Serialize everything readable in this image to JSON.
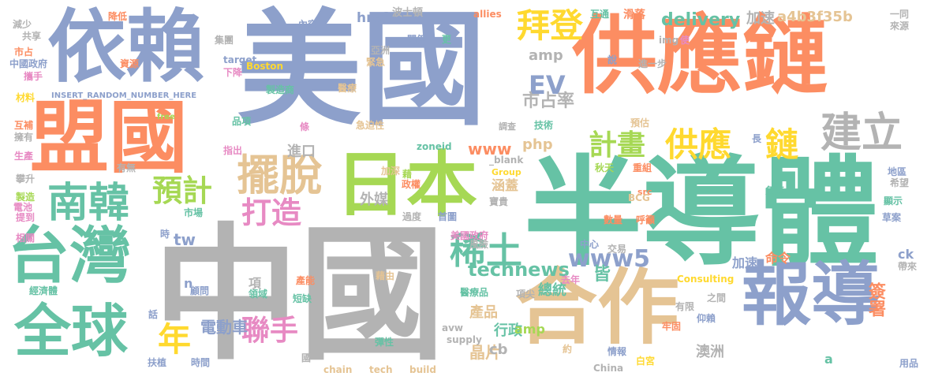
{
  "colors": {
    "blue": "#8da0cb",
    "orange": "#fc8d62",
    "green": "#66c2a5",
    "gray": "#b3b3b3",
    "lime": "#a6d854",
    "tan": "#e5c494",
    "yellow": "#ffd92f",
    "pink": "#e78ac3"
  },
  "words": [
    {
      "text": "美國",
      "color": "#8da0cb"
    },
    {
      "text": "供應鏈",
      "color": "#fc8d62"
    },
    {
      "text": "依賴",
      "color": "#8da0cb"
    },
    {
      "text": "盟國",
      "color": "#fc8d62"
    },
    {
      "text": "半導體",
      "color": "#66c2a5"
    },
    {
      "text": "中國",
      "color": "#b3b3b3"
    },
    {
      "text": "日本",
      "color": "#a6d854"
    },
    {
      "text": "合作",
      "color": "#e5c494"
    },
    {
      "text": "報導",
      "color": "#8da0cb"
    },
    {
      "text": "台灣",
      "color": "#66c2a5"
    },
    {
      "text": "全球",
      "color": "#66c2a5"
    },
    {
      "text": "南韓",
      "color": "#66c2a5"
    },
    {
      "text": "擺脫",
      "color": "#e5c494"
    },
    {
      "text": "建立",
      "color": "#b3b3b3"
    },
    {
      "text": "拜登",
      "color": "#ffd92f"
    },
    {
      "text": "供應",
      "color": "#ffd92f"
    },
    {
      "text": "鏈",
      "color": "#ffd92f"
    },
    {
      "text": "稀土",
      "color": "#66c2a5"
    },
    {
      "text": "打造",
      "color": "#e78ac3"
    },
    {
      "text": "聯手",
      "color": "#e78ac3"
    },
    {
      "text": "預計",
      "color": "#a6d854"
    },
    {
      "text": "年",
      "color": "#ffd92f"
    },
    {
      "text": "計畫",
      "color": "#a6d854"
    },
    {
      "text": "EV",
      "color": "#8da0cb"
    },
    {
      "text": "www5",
      "color": "#8da0cb"
    },
    {
      "text": "technews",
      "color": "#66c2a5"
    },
    {
      "text": "delivery",
      "color": "#66c2a5"
    },
    {
      "text": "a4b3f35b",
      "color": "#e5c494"
    },
    {
      "text": "加速",
      "color": "#b3b3b3"
    },
    {
      "text": "amp",
      "color": "#b3b3b3"
    },
    {
      "text": "www",
      "color": "#fc8d62"
    },
    {
      "text": "php",
      "color": "#e5c494"
    },
    {
      "text": "市占率",
      "color": "#b3b3b3"
    },
    {
      "text": "電動車",
      "color": "#8da0cb"
    },
    {
      "text": "href",
      "color": "#8da0cb"
    },
    {
      "text": "進口",
      "color": "#b3b3b3"
    },
    {
      "text": "外媒",
      "color": "#b3b3b3"
    },
    {
      "text": "tw",
      "color": "#8da0cb"
    },
    {
      "text": "皆",
      "color": "#66c2a5"
    },
    {
      "text": "產品",
      "color": "#e5c494"
    },
    {
      "text": "晶片",
      "color": "#e5c494"
    },
    {
      "text": "cb",
      "color": "#b3b3b3"
    },
    {
      "text": "澳洲",
      "color": "#b3b3b3"
    },
    {
      "text": "總統",
      "color": "#66c2a5"
    },
    {
      "text": "行政",
      "color": "#66c2a5"
    },
    {
      "text": "簽署",
      "color": "#fc8d62"
    },
    {
      "text": "命令",
      "color": "#fc8d62"
    },
    {
      "text": "涵蓋",
      "color": "#e5c494"
    },
    {
      "text": "amp",
      "color": "#a6d854"
    },
    {
      "text": "加速",
      "color": "#8da0cb"
    },
    {
      "text": "ck",
      "color": "#8da0cb"
    },
    {
      "text": "a",
      "color": "#66c2a5"
    },
    {
      "text": "波士頓",
      "color": "#b3b3b3"
    },
    {
      "text": "allies",
      "color": "#fc8d62"
    },
    {
      "text": "互通",
      "color": "#66c2a5"
    },
    {
      "text": "滑落",
      "color": "#fc8d62"
    },
    {
      "text": "一同",
      "color": "#b3b3b3"
    },
    {
      "text": "來源",
      "color": "#b3b3b3"
    },
    {
      "text": "減少",
      "color": "#b3b3b3"
    },
    {
      "text": "共享",
      "color": "#b3b3b3"
    },
    {
      "text": "降低",
      "color": "#fc8d62"
    },
    {
      "text": "內容",
      "color": "#8da0cb"
    },
    {
      "text": "關係",
      "color": "#8da0cb"
    },
    {
      "text": "更",
      "color": "#66c2a5"
    },
    {
      "text": "亞洲",
      "color": "#b3b3b3"
    },
    {
      "text": "緊急",
      "color": "#e5c494"
    },
    {
      "text": "集團",
      "color": "#b3b3b3"
    },
    {
      "text": "資源",
      "color": "#fc8d62"
    },
    {
      "text": "target",
      "color": "#8da0cb"
    },
    {
      "text": "Boston",
      "color": "#ffd92f"
    },
    {
      "text": "下降",
      "color": "#e78ac3"
    },
    {
      "text": "製造商",
      "color": "#66c2a5"
    },
    {
      "text": "醫療",
      "color": "#e5c494"
    },
    {
      "text": "市占",
      "color": "#fc8d62"
    },
    {
      "text": "中國政府",
      "color": "#8da0cb"
    },
    {
      "text": "攜手",
      "color": "#e78ac3"
    },
    {
      "text": "材料",
      "color": "#ffd92f"
    },
    {
      "text": "INSERT_RANDOM_NUMBER_HERE",
      "color": "#8da0cb"
    },
    {
      "text": "free",
      "color": "#a6d854"
    },
    {
      "text": "品項",
      "color": "#66c2a5"
    },
    {
      "text": "條",
      "color": "#e78ac3"
    },
    {
      "text": "急迫性",
      "color": "#e5c494"
    },
    {
      "text": "調查",
      "color": "#b3b3b3"
    },
    {
      "text": "技術",
      "color": "#66c2a5"
    },
    {
      "text": "預估",
      "color": "#e5c494"
    },
    {
      "text": "說",
      "color": "#8da0cb"
    },
    {
      "text": "進一步",
      "color": "#b3b3b3"
    },
    {
      "text": "img",
      "color": "#b3b3b3"
    },
    {
      "text": "使",
      "color": "#e78ac3"
    },
    {
      "text": "互補",
      "color": "#fc8d62"
    },
    {
      "text": "擁有",
      "color": "#b3b3b3"
    },
    {
      "text": "生產",
      "color": "#e78ac3"
    },
    {
      "text": "攀升",
      "color": "#b3b3b3"
    },
    {
      "text": "有無",
      "color": "#b3b3b3"
    },
    {
      "text": "指出",
      "color": "#e78ac3"
    },
    {
      "text": "zoneid",
      "color": "#66c2a5"
    },
    {
      "text": "_blank",
      "color": "#b3b3b3"
    },
    {
      "text": "秋天",
      "color": "#a6d854"
    },
    {
      "text": "重組",
      "color": "#fc8d62"
    },
    {
      "text": "長",
      "color": "#8da0cb"
    },
    {
      "text": "加深",
      "color": "#e5c494"
    },
    {
      "text": "藉",
      "color": "#a6d854"
    },
    {
      "text": "政權",
      "color": "#fc8d62"
    },
    {
      "text": "Group",
      "color": "#ffd92f"
    },
    {
      "text": "寶貴",
      "color": "#b3b3b3"
    },
    {
      "text": "src",
      "color": "#fc8d62"
    },
    {
      "text": "BCG",
      "color": "#e5c494"
    },
    {
      "text": "急速",
      "color": "#66c2a5"
    },
    {
      "text": "地區",
      "color": "#8da0cb"
    },
    {
      "text": "希望",
      "color": "#b3b3b3"
    },
    {
      "text": "顯示",
      "color": "#66c2a5"
    },
    {
      "text": "草案",
      "color": "#8da0cb"
    },
    {
      "text": "市場",
      "color": "#66c2a5"
    },
    {
      "text": "過度",
      "color": "#b3b3b3"
    },
    {
      "text": "首圖",
      "color": "#8da0cb"
    },
    {
      "text": "數量",
      "color": "#fc8d62"
    },
    {
      "text": "呼籲",
      "color": "#fc8d62"
    },
    {
      "text": "時",
      "color": "#8da0cb"
    },
    {
      "text": "美國政府",
      "color": "#e78ac3"
    },
    {
      "text": "風險",
      "color": "#b3b3b3"
    },
    {
      "text": "中心",
      "color": "#8da0cb"
    },
    {
      "text": "交易",
      "color": "#b3b3b3"
    },
    {
      "text": "製造",
      "color": "#a6d854"
    },
    {
      "text": "電池",
      "color": "#e78ac3"
    },
    {
      "text": "提到",
      "color": "#e78ac3"
    },
    {
      "text": "相關",
      "color": "#e78ac3"
    },
    {
      "text": "n",
      "color": "#8da0cb"
    },
    {
      "text": "項",
      "color": "#b3b3b3"
    },
    {
      "text": "藉由",
      "color": "#e5c494"
    },
    {
      "text": "去年",
      "color": "#e78ac3"
    },
    {
      "text": "Consulting",
      "color": "#ffd92f"
    },
    {
      "text": "帶來",
      "color": "#b3b3b3"
    },
    {
      "text": "經濟體",
      "color": "#66c2a5"
    },
    {
      "text": "顧問",
      "color": "#8da0cb"
    },
    {
      "text": "領域",
      "color": "#66c2a5"
    },
    {
      "text": "產能",
      "color": "#fc8d62"
    },
    {
      "text": "醫療品",
      "color": "#66c2a5"
    },
    {
      "text": "項尖",
      "color": "#b3b3b3"
    },
    {
      "text": "有限",
      "color": "#b3b3b3"
    },
    {
      "text": "之間",
      "color": "#b3b3b3"
    },
    {
      "text": "短缺",
      "color": "#66c2a5"
    },
    {
      "text": "話",
      "color": "#8da0cb"
    },
    {
      "text": "avw",
      "color": "#b3b3b3"
    },
    {
      "text": "supply",
      "color": "#b3b3b3"
    },
    {
      "text": "仰賴",
      "color": "#8da0cb"
    },
    {
      "text": "牢固",
      "color": "#fc8d62"
    },
    {
      "text": "彈性",
      "color": "#66c2a5"
    },
    {
      "text": "約",
      "color": "#e5c494"
    },
    {
      "text": "情報",
      "color": "#8da0cb"
    },
    {
      "text": "扶植",
      "color": "#8da0cb"
    },
    {
      "text": "時間",
      "color": "#8da0cb"
    },
    {
      "text": "國",
      "color": "#b3b3b3"
    },
    {
      "text": "chain",
      "color": "#e5c494"
    },
    {
      "text": "tech",
      "color": "#e5c494"
    },
    {
      "text": "build",
      "color": "#e5c494"
    },
    {
      "text": "China",
      "color": "#b3b3b3"
    },
    {
      "text": "白宮",
      "color": "#ffd92f"
    },
    {
      "text": "用品",
      "color": "#8da0cb"
    }
  ]
}
